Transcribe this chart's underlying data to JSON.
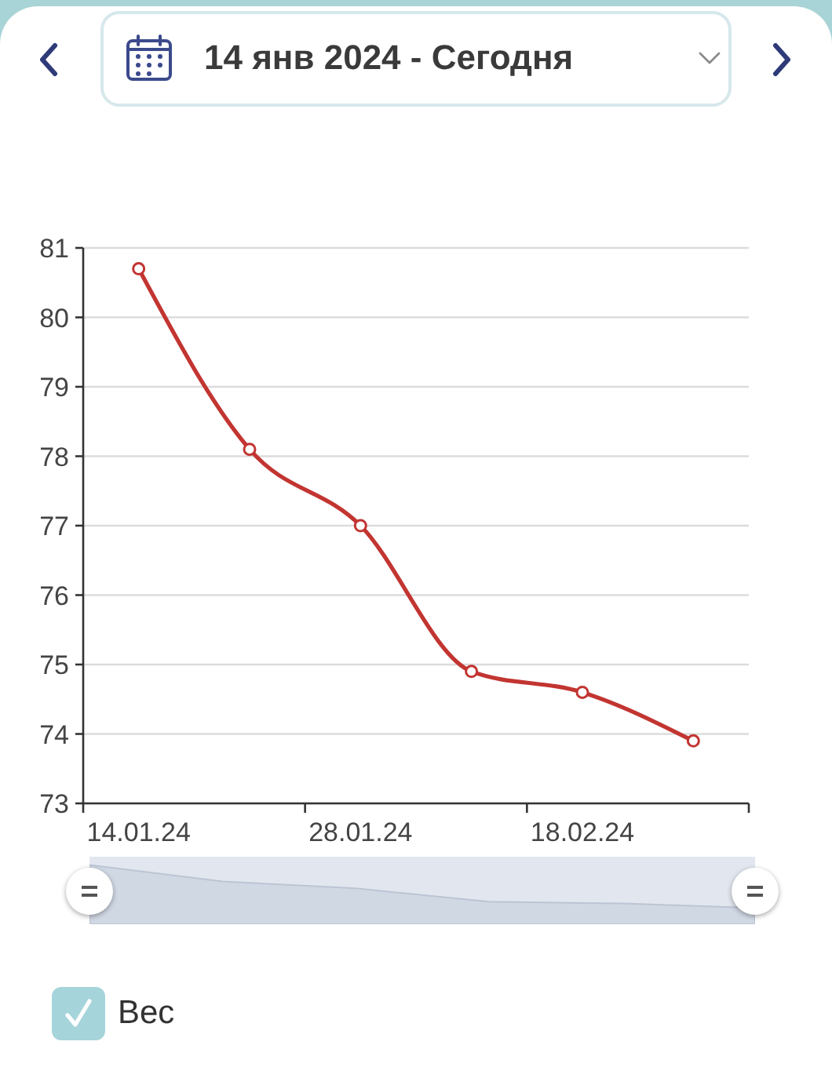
{
  "chart_data": {
    "type": "line",
    "title": "14 янв 2024 - Сегодня",
    "categories": [
      "14.01.24",
      null,
      "28.01.24",
      null,
      "18.02.24",
      null
    ],
    "series": [
      {
        "name": "Вес",
        "color": "#c23531",
        "values": [
          80.7,
          78.1,
          77.0,
          74.9,
          74.6,
          73.9
        ]
      }
    ],
    "ylim": [
      73,
      81
    ],
    "yticks": [
      73,
      74,
      75,
      76,
      77,
      78,
      79,
      80,
      81
    ],
    "grid": "y",
    "legend": "bottom left",
    "marker": "circle"
  }
}
